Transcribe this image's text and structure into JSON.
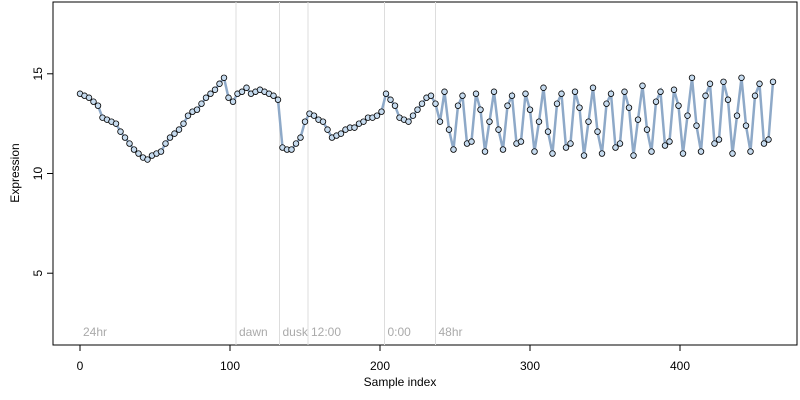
{
  "chart_data": {
    "type": "scatter",
    "x_label": "Sample index",
    "y_label": "Expression",
    "xlim": [
      -18,
      478
    ],
    "ylim": [
      1.4,
      18.6
    ],
    "xticks": [
      0,
      100,
      200,
      300,
      400
    ],
    "yticks": [
      5,
      10,
      15
    ],
    "annotations": [
      {
        "x": 0,
        "label": "24hr"
      },
      {
        "x": 104,
        "label": "dawn"
      },
      {
        "x": 133,
        "label": "dusk"
      },
      {
        "x": 152,
        "label": "12:00"
      },
      {
        "x": 203,
        "label": "0:00"
      },
      {
        "x": 237,
        "label": "48hr"
      }
    ],
    "series": [
      {
        "color": "#c6dbef",
        "line_color": "#8ea9c8",
        "x": [
          0,
          3,
          6,
          9,
          12,
          15,
          18,
          21,
          24,
          27,
          30,
          33,
          36,
          39,
          42,
          45,
          48,
          51,
          54,
          57,
          60,
          63,
          66,
          69,
          72,
          75,
          78,
          81,
          84,
          87,
          90,
          93,
          96,
          99,
          102,
          105,
          108,
          111,
          114,
          117,
          120,
          123,
          126,
          129,
          132,
          135,
          138,
          141,
          144,
          147,
          150,
          153,
          156,
          159,
          162,
          165,
          168,
          171,
          174,
          177,
          180,
          183,
          186,
          189,
          192,
          195,
          198,
          201,
          204,
          207,
          210,
          213,
          216,
          219,
          222,
          225,
          228,
          231,
          234,
          237,
          240,
          243,
          246,
          249,
          252,
          255,
          258,
          261,
          264,
          267,
          270,
          273,
          276,
          279,
          282,
          285,
          288,
          291,
          294,
          297,
          300,
          303,
          306,
          309,
          312,
          315,
          318,
          321,
          324,
          327,
          330,
          333,
          336,
          339,
          342,
          345,
          348,
          351,
          354,
          357,
          360,
          363,
          366,
          369,
          372,
          375,
          378,
          381,
          384,
          387,
          390,
          393,
          396,
          399,
          402,
          405,
          408,
          411,
          414,
          417,
          420,
          423,
          426,
          429,
          432,
          435,
          438,
          441,
          444,
          447,
          450,
          453,
          456,
          459,
          462
        ],
        "values": [
          14.0,
          13.9,
          13.8,
          13.6,
          13.4,
          12.8,
          12.7,
          12.6,
          12.5,
          12.1,
          11.8,
          11.5,
          11.2,
          11.0,
          10.8,
          10.7,
          10.9,
          11.0,
          11.1,
          11.5,
          11.8,
          12.0,
          12.2,
          12.5,
          12.9,
          13.1,
          13.2,
          13.5,
          13.8,
          14.0,
          14.2,
          14.5,
          14.8,
          13.8,
          13.6,
          14.0,
          14.1,
          14.3,
          14.0,
          14.1,
          14.2,
          14.1,
          14.0,
          13.9,
          13.7,
          11.3,
          11.2,
          11.2,
          11.5,
          11.8,
          12.6,
          13.0,
          12.9,
          12.7,
          12.6,
          12.2,
          11.8,
          11.9,
          12.0,
          12.2,
          12.3,
          12.3,
          12.5,
          12.6,
          12.8,
          12.8,
          12.9,
          13.1,
          14.0,
          13.7,
          13.4,
          12.8,
          12.7,
          12.6,
          12.9,
          13.2,
          13.5,
          13.8,
          13.9,
          13.5,
          12.6,
          14.1,
          12.2,
          11.2,
          13.4,
          13.9,
          11.5,
          11.6,
          14.0,
          13.2,
          11.1,
          12.6,
          14.1,
          12.2,
          11.2,
          13.4,
          13.9,
          11.5,
          11.6,
          14.0,
          13.2,
          11.1,
          12.6,
          14.3,
          12.1,
          11.0,
          13.5,
          14.0,
          11.3,
          11.5,
          14.1,
          13.3,
          10.9,
          12.6,
          14.3,
          12.1,
          11.0,
          13.5,
          14.0,
          11.3,
          11.5,
          14.1,
          13.3,
          10.9,
          12.7,
          14.4,
          12.2,
          11.1,
          13.6,
          14.1,
          11.4,
          11.6,
          14.2,
          13.4,
          11.0,
          12.9,
          14.8,
          12.4,
          11.1,
          13.9,
          14.5,
          11.5,
          11.7,
          14.6,
          13.7,
          11.0,
          12.9,
          14.8,
          12.4,
          11.1,
          13.9,
          14.5,
          11.5,
          11.7,
          14.6
        ]
      }
    ]
  }
}
